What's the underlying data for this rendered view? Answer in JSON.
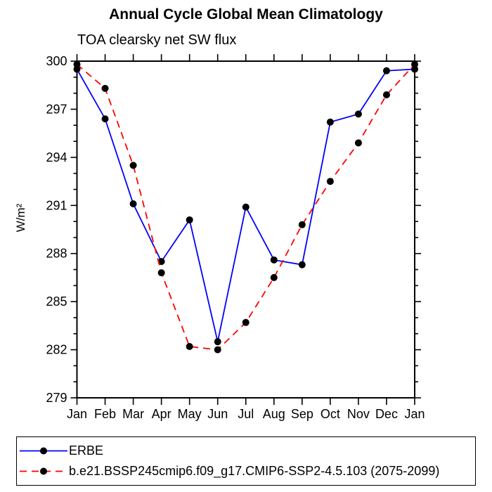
{
  "chart_data": {
    "type": "line",
    "title": "Annual Cycle Global Mean Climatology",
    "subtitle": "TOA clearsky net SW flux",
    "ylabel": "W/m²",
    "x_categories": [
      "Jan",
      "Feb",
      "Mar",
      "Apr",
      "May",
      "Jun",
      "Jul",
      "Aug",
      "Sep",
      "Oct",
      "Nov",
      "Dec",
      "Jan"
    ],
    "ylim": [
      279,
      300
    ],
    "ytick_major": [
      279,
      282,
      285,
      288,
      291,
      294,
      297,
      300
    ],
    "ytick_minor_step": 1,
    "grid": false,
    "legend_position": "bottom-left-box",
    "series": [
      {
        "name": "ERBE",
        "color": "#0000ff",
        "style": "solid",
        "marker": "circle",
        "marker_color": "#000000",
        "values": [
          299.5,
          296.4,
          291.1,
          287.5,
          290.1,
          282.5,
          290.9,
          287.6,
          287.3,
          296.2,
          296.7,
          299.4,
          299.5
        ]
      },
      {
        "name": "b.e21.BSSP245cmip6.f09_g17.CMIP6-SSP2-4.5.103 (2075-2099)",
        "color": "#ff0000",
        "style": "dashed",
        "marker": "circle",
        "marker_color": "#000000",
        "values": [
          299.8,
          298.3,
          293.5,
          286.8,
          282.2,
          282.0,
          283.7,
          286.5,
          289.8,
          292.5,
          294.9,
          297.9,
          299.8
        ]
      }
    ]
  },
  "colors": {
    "axis": "#000000",
    "background": "#ffffff",
    "erbe_line": "#0000ff",
    "model_line": "#ff0000",
    "marker": "#000000"
  }
}
